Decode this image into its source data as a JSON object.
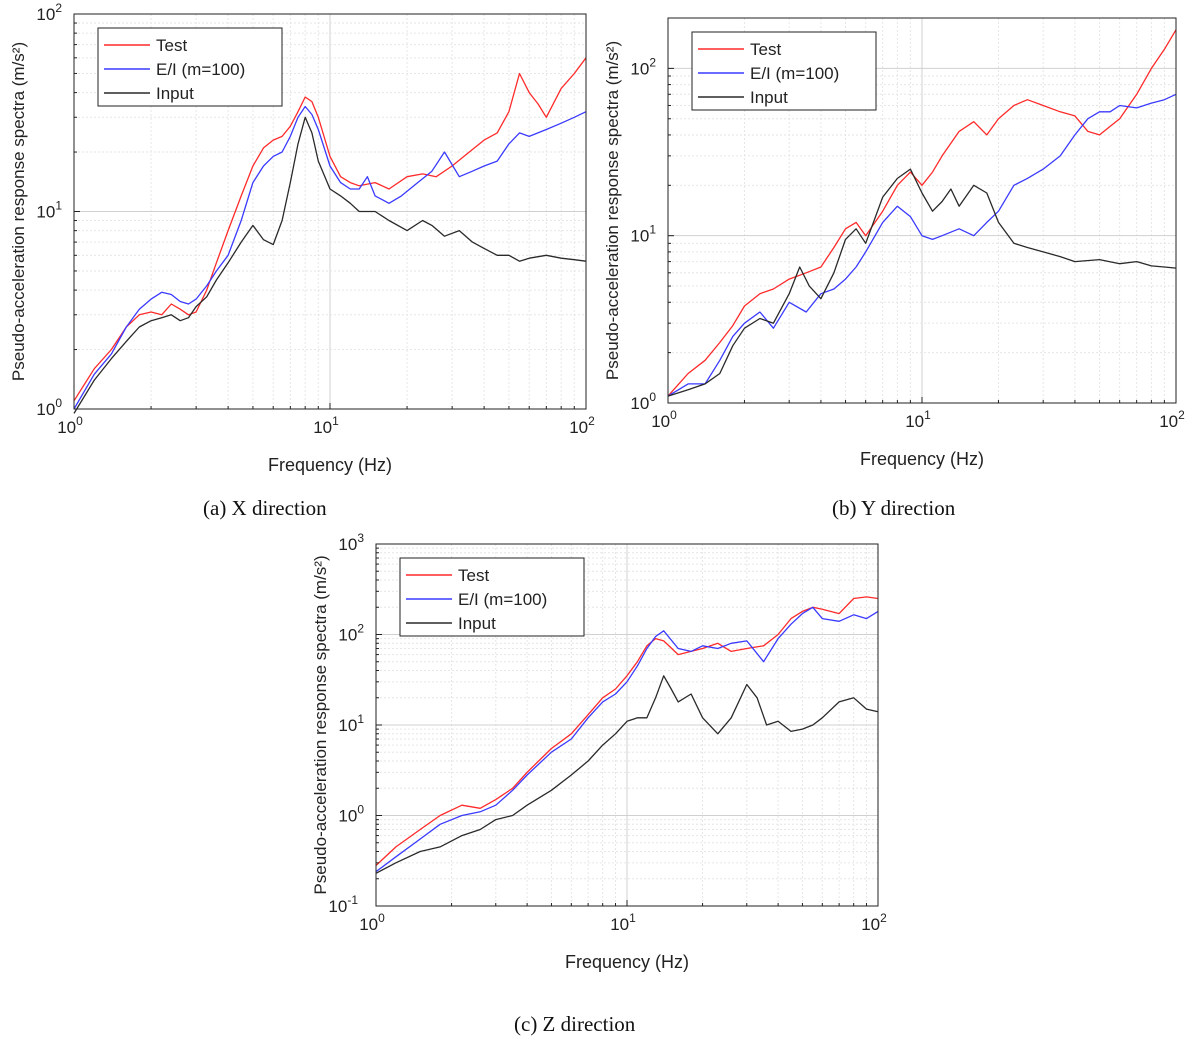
{
  "figure": {
    "captions": [
      "(a)  X direction",
      "(b) Y direction",
      "(c) Z direction"
    ]
  },
  "colors": {
    "test": "#ff2a2a",
    "ei": "#3a3aff",
    "input": "#2a2a2a",
    "grid_major": "#d0d0d0",
    "grid_minor": "#e6e6e6",
    "axes": "#222222"
  },
  "chart_data": [
    {
      "type": "line",
      "caption": "(a)  X direction",
      "xlabel": "Frequency (Hz)",
      "ylabel": "Pseudo-acceleration response spectra  (m/s²)",
      "xscale": "log",
      "yscale": "log",
      "xlim": [
        1,
        100
      ],
      "ylim": [
        1,
        100
      ],
      "xticks": [
        1,
        10,
        100
      ],
      "xtick_labels": [
        [
          "10",
          "0"
        ],
        [
          "10",
          "1"
        ],
        [
          "10",
          "2"
        ]
      ],
      "yticks": [
        1,
        10,
        100
      ],
      "ytick_labels": [
        [
          "10",
          "0"
        ],
        [
          "10",
          "1"
        ],
        [
          "10",
          "2"
        ]
      ],
      "grid": true,
      "legend": "top-left",
      "series": [
        {
          "name": "Test",
          "color_key": "test",
          "x": [
            1,
            1.2,
            1.4,
            1.6,
            1.8,
            2,
            2.2,
            2.4,
            2.6,
            2.8,
            3,
            3.3,
            3.6,
            4,
            4.5,
            5,
            5.5,
            6,
            6.5,
            7,
            7.5,
            8,
            8.5,
            9,
            10,
            11,
            12,
            13,
            15,
            17,
            20,
            23,
            26,
            30,
            35,
            40,
            45,
            50,
            55,
            60,
            65,
            70,
            80,
            90,
            100
          ],
          "y": [
            1.1,
            1.6,
            2.0,
            2.6,
            3.0,
            3.1,
            3.0,
            3.4,
            3.2,
            3.0,
            3.1,
            4.0,
            5.5,
            8.0,
            12,
            17,
            21,
            23,
            24,
            27,
            32,
            38,
            36,
            30,
            19,
            15,
            14,
            13.5,
            14,
            13,
            15,
            15.5,
            15,
            17,
            20,
            23,
            25,
            32,
            50,
            40,
            35,
            30,
            42,
            50,
            60
          ]
        },
        {
          "name": "E/I (m=100)",
          "color_key": "ei",
          "x": [
            1,
            1.2,
            1.4,
            1.6,
            1.8,
            2,
            2.2,
            2.4,
            2.6,
            2.8,
            3,
            3.3,
            3.6,
            4,
            4.5,
            5,
            5.5,
            6,
            6.5,
            7,
            7.5,
            8,
            8.5,
            9,
            10,
            11,
            12,
            13,
            14,
            15,
            17,
            19,
            22,
            25,
            28,
            32,
            36,
            40,
            45,
            50,
            55,
            60,
            70,
            80,
            90,
            100
          ],
          "y": [
            1.0,
            1.5,
            1.9,
            2.6,
            3.2,
            3.6,
            3.9,
            3.8,
            3.5,
            3.4,
            3.6,
            4.2,
            5.0,
            6.0,
            9.0,
            14,
            17,
            19,
            20,
            24,
            30,
            34,
            31,
            26,
            17,
            14,
            13,
            13,
            15,
            12,
            11,
            12,
            14,
            16,
            20,
            15,
            16,
            17,
            18,
            22,
            25,
            24,
            26,
            28,
            30,
            32
          ]
        },
        {
          "name": "Input",
          "color_key": "input",
          "x": [
            1,
            1.2,
            1.4,
            1.6,
            1.8,
            2,
            2.2,
            2.4,
            2.6,
            2.8,
            3,
            3.3,
            3.6,
            4,
            4.5,
            5,
            5.5,
            6,
            6.5,
            7,
            7.5,
            8,
            8.5,
            9,
            10,
            11,
            12,
            13,
            15,
            17,
            20,
            23,
            25,
            28,
            32,
            36,
            40,
            45,
            50,
            55,
            60,
            70,
            80,
            90,
            100
          ],
          "y": [
            0.95,
            1.4,
            1.8,
            2.2,
            2.6,
            2.8,
            2.9,
            3.0,
            2.8,
            2.9,
            3.3,
            3.7,
            4.5,
            5.5,
            7.0,
            8.5,
            7.2,
            6.8,
            9.0,
            14,
            22,
            30,
            25,
            18,
            13,
            12,
            11,
            10,
            10,
            9,
            8,
            9,
            8.5,
            7.5,
            8,
            7,
            6.5,
            6,
            6,
            5.6,
            5.8,
            6,
            5.8,
            5.7,
            5.6
          ]
        }
      ]
    },
    {
      "type": "line",
      "caption": "(b) Y direction",
      "xlabel": "Frequency (Hz)",
      "ylabel": "Pseudo-acceleration response spectra  (m/s²)",
      "xscale": "log",
      "yscale": "log",
      "xlim": [
        1,
        100
      ],
      "ylim": [
        1,
        200
      ],
      "xticks": [
        1,
        10,
        100
      ],
      "xtick_labels": [
        [
          "10",
          "0"
        ],
        [
          "10",
          "1"
        ],
        [
          "10",
          "2"
        ]
      ],
      "yticks": [
        1,
        10,
        100
      ],
      "ytick_labels": [
        [
          "10",
          "0"
        ],
        [
          "10",
          "1"
        ],
        [
          "10",
          "2"
        ]
      ],
      "grid": true,
      "legend": "top-left",
      "series": [
        {
          "name": "Test",
          "color_key": "test",
          "x": [
            1,
            1.2,
            1.4,
            1.6,
            1.8,
            2,
            2.3,
            2.6,
            3,
            3.5,
            4,
            4.5,
            5,
            5.5,
            6,
            7,
            8,
            9,
            10,
            11,
            12,
            14,
            16,
            18,
            20,
            23,
            26,
            30,
            35,
            40,
            45,
            50,
            55,
            60,
            70,
            80,
            90,
            100
          ],
          "y": [
            1.1,
            1.5,
            1.8,
            2.3,
            2.9,
            3.8,
            4.5,
            4.8,
            5.5,
            6.0,
            6.5,
            8.5,
            11,
            12,
            10,
            14,
            20,
            24,
            20,
            24,
            30,
            42,
            48,
            40,
            50,
            60,
            65,
            60,
            55,
            52,
            42,
            40,
            45,
            50,
            70,
            100,
            130,
            170
          ]
        },
        {
          "name": "E/I (m=100)",
          "color_key": "ei",
          "x": [
            1,
            1.2,
            1.4,
            1.6,
            1.8,
            2,
            2.3,
            2.6,
            3,
            3.5,
            4,
            4.5,
            5,
            5.5,
            6,
            7,
            8,
            9,
            10,
            11,
            12,
            14,
            16,
            18,
            20,
            23,
            26,
            30,
            35,
            40,
            45,
            50,
            55,
            60,
            70,
            80,
            90,
            100
          ],
          "y": [
            1.1,
            1.3,
            1.3,
            1.8,
            2.5,
            3.0,
            3.5,
            2.8,
            4.0,
            3.5,
            4.5,
            4.8,
            5.5,
            6.5,
            8.0,
            12,
            15,
            13,
            10,
            9.5,
            10,
            11,
            10,
            12,
            14,
            20,
            22,
            25,
            30,
            40,
            50,
            55,
            55,
            60,
            58,
            62,
            65,
            70
          ]
        },
        {
          "name": "Input",
          "color_key": "input",
          "x": [
            1,
            1.2,
            1.4,
            1.6,
            1.8,
            2,
            2.3,
            2.6,
            3,
            3.3,
            3.6,
            4,
            4.5,
            5,
            5.5,
            6,
            7,
            8,
            9,
            10,
            11,
            12,
            13,
            14,
            16,
            18,
            20,
            23,
            26,
            30,
            35,
            40,
            50,
            60,
            70,
            80,
            90,
            100
          ],
          "y": [
            1.1,
            1.2,
            1.3,
            1.5,
            2.2,
            2.8,
            3.2,
            3.0,
            4.5,
            6.5,
            5.0,
            4.2,
            6.0,
            9.5,
            11,
            9.0,
            17,
            22,
            25,
            18,
            14,
            16,
            19,
            15,
            20,
            18,
            12,
            9.0,
            8.5,
            8.0,
            7.5,
            7.0,
            7.2,
            6.8,
            7.0,
            6.6,
            6.5,
            6.4
          ]
        }
      ]
    },
    {
      "type": "line",
      "caption": "(c) Z direction",
      "xlabel": "Frequency (Hz)",
      "ylabel": "Pseudo-acceleration response spectra  (m/s²)",
      "xscale": "log",
      "yscale": "log",
      "xlim": [
        1,
        100
      ],
      "ylim": [
        0.1,
        1000
      ],
      "xticks": [
        1,
        10,
        100
      ],
      "xtick_labels": [
        [
          "10",
          "0"
        ],
        [
          "10",
          "1"
        ],
        [
          "10",
          "2"
        ]
      ],
      "yticks": [
        0.1,
        1,
        10,
        100,
        1000
      ],
      "ytick_labels": [
        [
          "10",
          "-1"
        ],
        [
          "10",
          "0"
        ],
        [
          "10",
          "1"
        ],
        [
          "10",
          "2"
        ],
        [
          "10",
          "3"
        ]
      ],
      "grid": true,
      "legend": "top-left",
      "series": [
        {
          "name": "Test",
          "color_key": "test",
          "x": [
            1,
            1.2,
            1.5,
            1.8,
            2.2,
            2.6,
            3,
            3.5,
            4,
            5,
            6,
            7,
            8,
            9,
            10,
            11,
            12,
            13,
            14,
            16,
            18,
            20,
            23,
            26,
            30,
            35,
            40,
            45,
            50,
            55,
            60,
            70,
            80,
            90,
            100
          ],
          "y": [
            0.28,
            0.45,
            0.7,
            1.0,
            1.3,
            1.2,
            1.5,
            2.0,
            3.0,
            5.5,
            8.0,
            13,
            20,
            25,
            35,
            50,
            75,
            90,
            85,
            60,
            65,
            70,
            80,
            65,
            70,
            75,
            100,
            150,
            180,
            200,
            190,
            170,
            250,
            260,
            250
          ]
        },
        {
          "name": "E/I (m=100)",
          "color_key": "ei",
          "x": [
            1,
            1.2,
            1.5,
            1.8,
            2.2,
            2.6,
            3,
            3.5,
            4,
            5,
            6,
            7,
            8,
            9,
            10,
            11,
            12,
            13,
            14,
            16,
            18,
            20,
            23,
            26,
            30,
            35,
            40,
            45,
            50,
            55,
            60,
            70,
            80,
            90,
            100
          ],
          "y": [
            0.24,
            0.35,
            0.55,
            0.8,
            1.0,
            1.1,
            1.3,
            1.9,
            2.8,
            5.0,
            7.0,
            12,
            18,
            22,
            30,
            45,
            70,
            95,
            110,
            70,
            65,
            75,
            70,
            80,
            85,
            50,
            90,
            130,
            170,
            200,
            150,
            140,
            165,
            150,
            180
          ]
        },
        {
          "name": "Input",
          "color_key": "input",
          "x": [
            1,
            1.2,
            1.5,
            1.8,
            2.2,
            2.6,
            3,
            3.5,
            4,
            5,
            6,
            7,
            8,
            9,
            10,
            11,
            12,
            13,
            14,
            15,
            16,
            18,
            20,
            23,
            26,
            30,
            33,
            36,
            40,
            45,
            50,
            55,
            60,
            70,
            80,
            90,
            100
          ],
          "y": [
            0.23,
            0.3,
            0.4,
            0.45,
            0.6,
            0.7,
            0.9,
            1.0,
            1.3,
            1.9,
            2.8,
            4.0,
            6.0,
            8.0,
            11,
            12,
            12,
            20,
            35,
            25,
            18,
            22,
            12,
            8.0,
            12,
            28,
            20,
            10,
            11,
            8.5,
            9.0,
            10,
            12,
            18,
            20,
            15,
            14
          ]
        }
      ]
    }
  ]
}
